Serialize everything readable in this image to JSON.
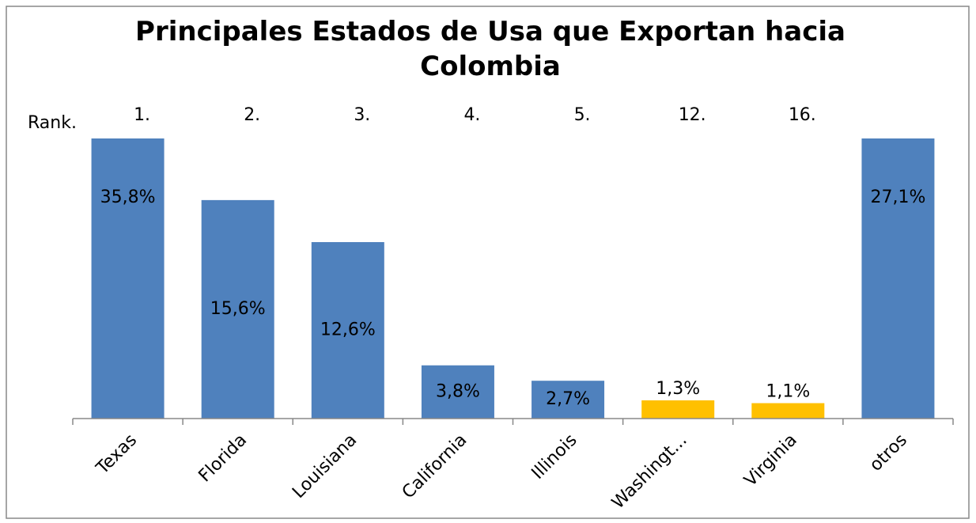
{
  "chart_data": {
    "type": "bar",
    "title": "Principales Estados de Usa que Exportan hacia Colombia",
    "rank_label": "Rank.",
    "ranks": [
      "1.",
      "2.",
      "3.",
      "4.",
      "5.",
      "12.",
      "16.",
      null
    ],
    "categories": [
      "Texas",
      "Florida",
      "Louisiana",
      "California",
      "Illinois",
      "Washingt...",
      "Virginia",
      "otros"
    ],
    "values": [
      35.8,
      15.6,
      12.6,
      3.8,
      2.7,
      1.3,
      1.1,
      27.1
    ],
    "value_labels": [
      "35,8%",
      "15,6%",
      "12,6%",
      "3,8%",
      "2,7%",
      "1,3%",
      "1,1%",
      "27,1%"
    ],
    "colors": [
      "#4f81bd",
      "#4f81bd",
      "#4f81bd",
      "#4f81bd",
      "#4f81bd",
      "#ffc000",
      "#ffc000",
      "#4f81bd"
    ],
    "ylim": [
      0,
      20
    ]
  }
}
